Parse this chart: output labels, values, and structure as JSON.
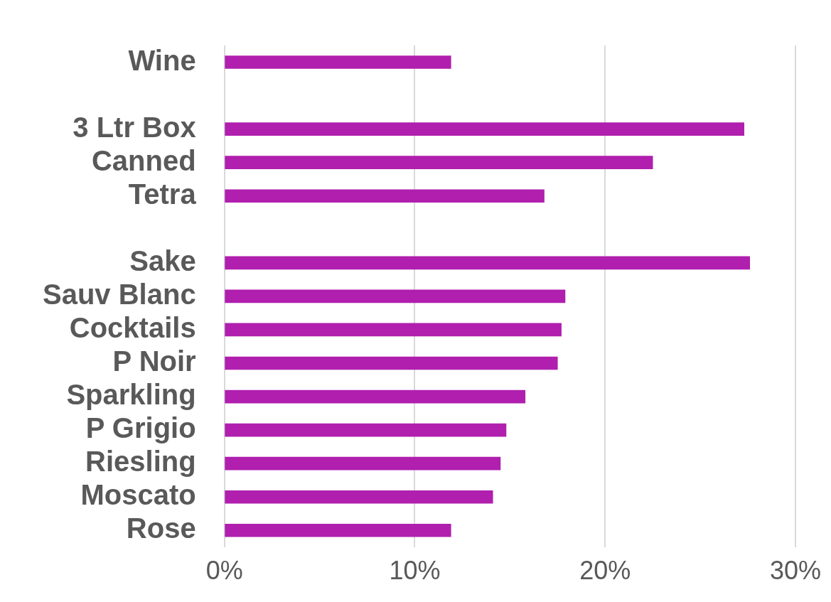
{
  "chart_data": {
    "type": "bar",
    "orientation": "horizontal",
    "categories": [
      "Wine",
      null,
      "3 Ltr Box",
      "Canned",
      "Tetra",
      null,
      "Sake",
      "Sauv Blanc",
      "Cocktails",
      "P Noir",
      "Sparkling",
      "P Grigio",
      "Riesling",
      "Moscato",
      "Rose"
    ],
    "values": [
      11.9,
      null,
      27.3,
      22.5,
      16.8,
      null,
      27.6,
      17.9,
      17.7,
      17.5,
      15.8,
      14.8,
      14.5,
      14.1,
      11.9
    ],
    "color": "#b01fae",
    "xlim": [
      0,
      30
    ],
    "xticks": [
      {
        "value": 0,
        "label": "0%"
      },
      {
        "value": 10,
        "label": "10%"
      },
      {
        "value": 20,
        "label": "20%"
      },
      {
        "value": 30,
        "label": "30%"
      }
    ],
    "grid": "x",
    "legend": false
  }
}
